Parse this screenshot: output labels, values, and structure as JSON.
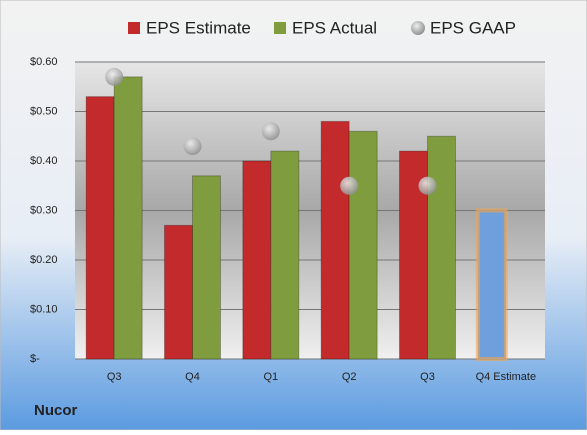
{
  "chart_data": {
    "type": "bar",
    "title": "Nucor",
    "categories": [
      "Q3",
      "Q4",
      "Q1",
      "Q2",
      "Q3",
      "Q4 Estimate"
    ],
    "series": [
      {
        "name": "EPS Estimate",
        "color": "#c32a2b",
        "values": [
          0.53,
          0.27,
          0.4,
          0.48,
          0.42,
          null
        ]
      },
      {
        "name": "EPS Actual",
        "color": "#7f9c3e",
        "values": [
          0.57,
          0.37,
          0.42,
          0.46,
          0.45,
          null
        ]
      },
      {
        "name": "EPS GAAP",
        "color": "#a6a6a6",
        "marker": "circle",
        "values": [
          0.57,
          0.43,
          0.46,
          0.35,
          0.35,
          null
        ]
      }
    ],
    "forecast": {
      "color": "#6f9fdc",
      "values": [
        null,
        null,
        null,
        null,
        null,
        0.3
      ]
    },
    "ylim": [
      0,
      0.6
    ],
    "yticks": [
      {
        "value": 0,
        "label": "$-"
      },
      {
        "value": 0.1,
        "label": "$0.10"
      },
      {
        "value": 0.2,
        "label": "$0.20"
      },
      {
        "value": 0.3,
        "label": "$0.30"
      },
      {
        "value": 0.4,
        "label": "$0.40"
      },
      {
        "value": 0.5,
        "label": "$0.50"
      },
      {
        "value": 0.6,
        "label": "$0.60"
      }
    ],
    "grid": true,
    "legend": "top"
  }
}
